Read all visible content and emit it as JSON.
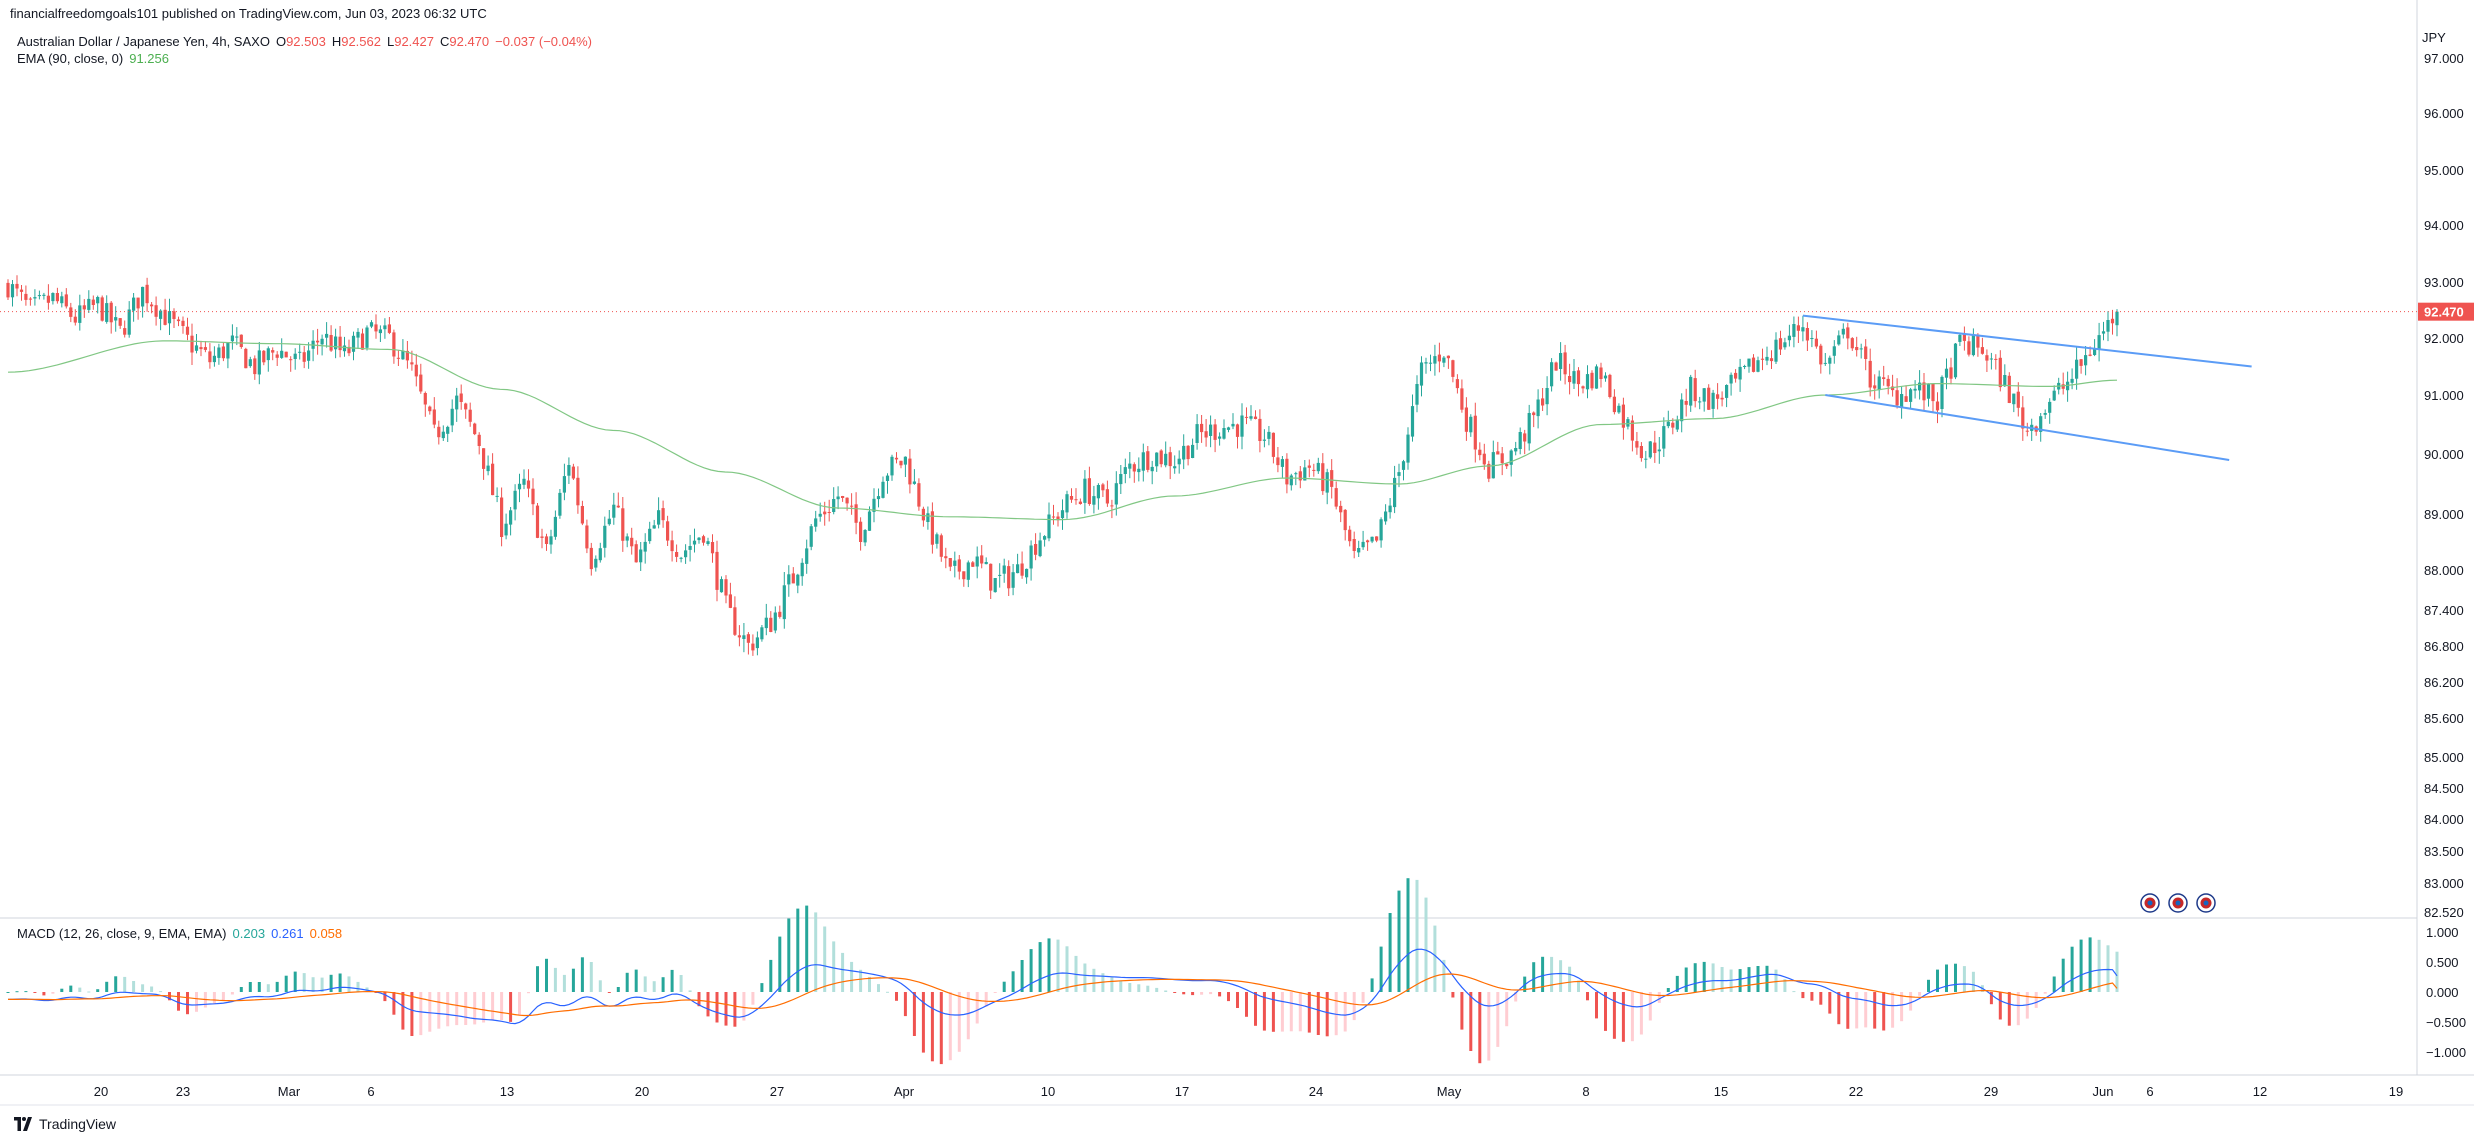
{
  "header": {
    "publisher_line": "financialfreedomgoals101 published on TradingView.com, Jun 03, 2023 06:32 UTC"
  },
  "legend": {
    "symbol": "Australian Dollar / Japanese Yen, 4h, SAXO",
    "o_label": "O",
    "o_value": "92.503",
    "h_label": "H",
    "h_value": "92.562",
    "l_label": "L",
    "l_value": "92.427",
    "c_label": "C",
    "c_value": "92.470",
    "change": "−0.037 (−0.04%)",
    "ema_label": "EMA (90, close, 0)",
    "ema_value": "91.256"
  },
  "macd_legend": {
    "label": "MACD (12, 26, close, 9, EMA, EMA)",
    "hist_value": "0.203",
    "macd_value": "0.261",
    "signal_value": "0.058"
  },
  "footer": {
    "brand": "TradingView"
  },
  "colors": {
    "up": "#26a69a",
    "down": "#ef5350",
    "ema": "#81c784",
    "macd": "#2962ff",
    "signal": "#ff6d00",
    "trendline": "#5b9cf6",
    "price_tag": "#ef5350",
    "hist_up": "#26a69a",
    "hist_up_light": "#b2dfdb",
    "hist_down": "#ef5350",
    "hist_down_light": "#ffcdd2"
  },
  "chart_data": {
    "type": "candlestick",
    "title": "Australian Dollar / Japanese Yen, 4h, SAXO",
    "currency": "JPY",
    "price_axis_ticks": [
      "97.000",
      "96.000",
      "95.000",
      "94.000",
      "93.000",
      "92.000",
      "91.000",
      "90.000",
      "89.000",
      "88.000",
      "87.400",
      "86.800",
      "86.200",
      "85.600",
      "85.000",
      "84.500",
      "84.000",
      "83.500",
      "83.000",
      "82.520"
    ],
    "last_price": "92.470",
    "time_axis_ticks": [
      "20",
      "23",
      "Mar",
      "6",
      "13",
      "20",
      "27",
      "Apr",
      "10",
      "17",
      "24",
      "May",
      "8",
      "15",
      "22",
      "29",
      "Jun",
      "6",
      "12",
      "19"
    ],
    "price_path": [
      {
        "d": 0,
        "p": 92.95
      },
      {
        "d": 1,
        "p": 92.5
      },
      {
        "d": 2,
        "p": 92.7
      },
      {
        "d": 3,
        "p": 92.35
      },
      {
        "d": 4,
        "p": 92.6
      },
      {
        "d": 5,
        "p": 92.1
      },
      {
        "d": 6,
        "p": 92.85
      },
      {
        "d": 7,
        "p": 92.4
      },
      {
        "d": 8,
        "p": 91.95
      },
      {
        "d": 9,
        "p": 91.6
      },
      {
        "d": 10,
        "p": 91.9
      },
      {
        "d": 11,
        "p": 91.5
      },
      {
        "d": 12,
        "p": 91.8
      },
      {
        "d": 13,
        "p": 91.55
      },
      {
        "d": 14,
        "p": 92.05
      },
      {
        "d": 15,
        "p": 91.7
      },
      {
        "d": 16,
        "p": 92.1
      },
      {
        "d": 17,
        "p": 92.0
      },
      {
        "d": 18,
        "p": 91.4
      },
      {
        "d": 19,
        "p": 90.3
      },
      {
        "d": 20,
        "p": 90.9
      },
      {
        "d": 21,
        "p": 90.2
      },
      {
        "d": 22,
        "p": 88.8
      },
      {
        "d": 23,
        "p": 89.5
      },
      {
        "d": 24,
        "p": 88.3
      },
      {
        "d": 25,
        "p": 89.9
      },
      {
        "d": 26,
        "p": 88.2
      },
      {
        "d": 27,
        "p": 89.1
      },
      {
        "d": 28,
        "p": 88.1
      },
      {
        "d": 29,
        "p": 88.9
      },
      {
        "d": 30,
        "p": 88.3
      },
      {
        "d": 31,
        "p": 88.7
      },
      {
        "d": 32,
        "p": 87.4
      },
      {
        "d": 33,
        "p": 86.8
      },
      {
        "d": 34,
        "p": 87.2
      },
      {
        "d": 35,
        "p": 87.9
      },
      {
        "d": 36,
        "p": 88.9
      },
      {
        "d": 37,
        "p": 89.3
      },
      {
        "d": 38,
        "p": 88.7
      },
      {
        "d": 39,
        "p": 89.7
      },
      {
        "d": 40,
        "p": 89.9
      },
      {
        "d": 41,
        "p": 88.8
      },
      {
        "d": 42,
        "p": 87.9
      },
      {
        "d": 43,
        "p": 88.2
      },
      {
        "d": 44,
        "p": 87.8
      },
      {
        "d": 45,
        "p": 88.0
      },
      {
        "d": 46,
        "p": 88.6
      },
      {
        "d": 47,
        "p": 89.1
      },
      {
        "d": 48,
        "p": 89.4
      },
      {
        "d": 49,
        "p": 89.2
      },
      {
        "d": 50,
        "p": 89.8
      },
      {
        "d": 51,
        "p": 90.0
      },
      {
        "d": 52,
        "p": 89.9
      },
      {
        "d": 53,
        "p": 90.3
      },
      {
        "d": 54,
        "p": 90.45
      },
      {
        "d": 55,
        "p": 90.5
      },
      {
        "d": 56,
        "p": 90.3
      },
      {
        "d": 57,
        "p": 89.6
      },
      {
        "d": 58,
        "p": 89.8
      },
      {
        "d": 59,
        "p": 89.4
      },
      {
        "d": 60,
        "p": 88.2
      },
      {
        "d": 61,
        "p": 88.5
      },
      {
        "d": 62,
        "p": 89.7
      },
      {
        "d": 63,
        "p": 91.4
      },
      {
        "d": 64,
        "p": 91.8
      },
      {
        "d": 65,
        "p": 90.6
      },
      {
        "d": 66,
        "p": 89.8
      },
      {
        "d": 67,
        "p": 90.0
      },
      {
        "d": 68,
        "p": 90.6
      },
      {
        "d": 69,
        "p": 91.6
      },
      {
        "d": 70,
        "p": 91.2
      },
      {
        "d": 71,
        "p": 91.4
      },
      {
        "d": 72,
        "p": 90.6
      },
      {
        "d": 73,
        "p": 90.0
      },
      {
        "d": 74,
        "p": 90.4
      },
      {
        "d": 75,
        "p": 91.1
      },
      {
        "d": 76,
        "p": 90.9
      },
      {
        "d": 77,
        "p": 91.2
      },
      {
        "d": 78,
        "p": 91.6
      },
      {
        "d": 79,
        "p": 91.9
      },
      {
        "d": 80,
        "p": 92.25
      },
      {
        "d": 81,
        "p": 91.5
      },
      {
        "d": 82,
        "p": 92.15
      },
      {
        "d": 83,
        "p": 91.3
      },
      {
        "d": 84,
        "p": 91.0
      },
      {
        "d": 85,
        "p": 91.1
      },
      {
        "d": 86,
        "p": 90.9
      },
      {
        "d": 87,
        "p": 91.9
      },
      {
        "d": 88,
        "p": 91.8
      },
      {
        "d": 89,
        "p": 91.2
      },
      {
        "d": 90,
        "p": 90.4
      },
      {
        "d": 91,
        "p": 90.9
      },
      {
        "d": 92,
        "p": 91.3
      },
      {
        "d": 93,
        "p": 91.9
      },
      {
        "d": 94,
        "p": 92.47
      }
    ],
    "ema_path": [
      {
        "d": 0,
        "p": 91.4
      },
      {
        "d": 7,
        "p": 91.95
      },
      {
        "d": 12,
        "p": 91.9
      },
      {
        "d": 17,
        "p": 91.8
      },
      {
        "d": 22,
        "p": 91.1
      },
      {
        "d": 27,
        "p": 90.4
      },
      {
        "d": 32,
        "p": 89.7
      },
      {
        "d": 37,
        "p": 89.1
      },
      {
        "d": 42,
        "p": 88.95
      },
      {
        "d": 47,
        "p": 88.9
      },
      {
        "d": 52,
        "p": 89.3
      },
      {
        "d": 57,
        "p": 89.6
      },
      {
        "d": 62,
        "p": 89.5
      },
      {
        "d": 66,
        "p": 89.8
      },
      {
        "d": 71,
        "p": 90.5
      },
      {
        "d": 76,
        "p": 90.6
      },
      {
        "d": 81,
        "p": 91.0
      },
      {
        "d": 86,
        "p": 91.2
      },
      {
        "d": 91,
        "p": 91.15
      },
      {
        "d": 94,
        "p": 91.26
      }
    ],
    "trendlines": [
      {
        "name": "channel-upper",
        "from": {
          "d": 80,
          "p": 92.4
        },
        "to": {
          "d": 100,
          "p": 91.5
        }
      },
      {
        "name": "channel-lower",
        "from": {
          "d": 81,
          "p": 91.0
        },
        "to": {
          "d": 99,
          "p": 89.9
        }
      }
    ],
    "macd": {
      "axis_ticks": [
        "1.000",
        "0.500",
        "0.000",
        "−0.500",
        "−1.000"
      ],
      "hist_last": 0.203,
      "macd_last": 0.261,
      "signal_last": 0.058
    }
  }
}
